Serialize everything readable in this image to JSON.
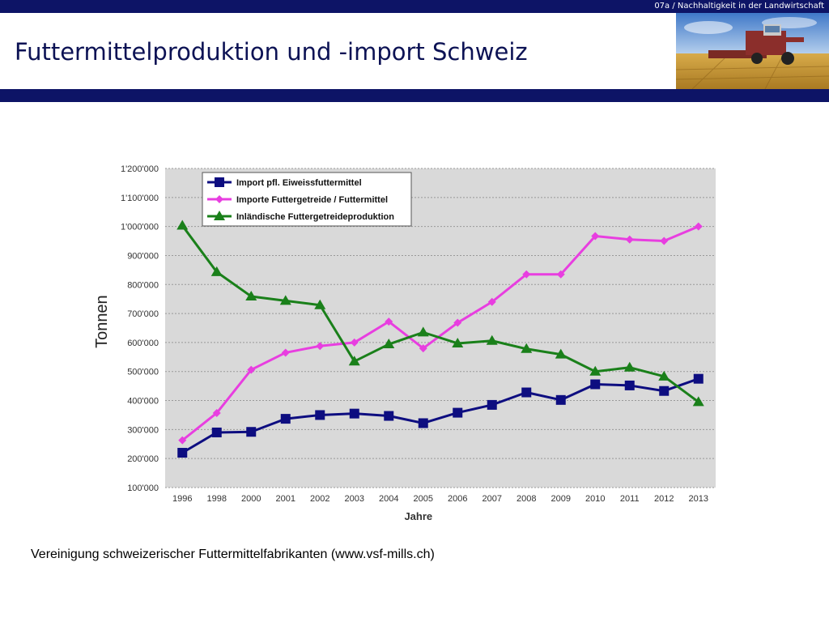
{
  "header": {
    "section_label": "07a / Nachhaltigkeit in der Landwirtschaft",
    "title": "Futtermittelproduktion und -import Schweiz",
    "photo_icon": "combine-harvester-field-photo"
  },
  "colors": {
    "bar": "#0d1466",
    "title": "#0c1254",
    "plot_bg": "#d9d9d9",
    "grid": "#999999"
  },
  "chart_data": {
    "type": "line",
    "title": "",
    "xlabel": "Jahre",
    "ylabel": "Tonnen",
    "categories": [
      "1996",
      "1998",
      "2000",
      "2001",
      "2002",
      "2003",
      "2004",
      "2005",
      "2006",
      "2007",
      "2008",
      "2009",
      "2010",
      "2011",
      "2012",
      "2013"
    ],
    "ylim": [
      100000,
      1200000
    ],
    "yticks": [
      100000,
      200000,
      300000,
      400000,
      500000,
      600000,
      700000,
      800000,
      900000,
      1000000,
      1100000,
      1200000
    ],
    "ytick_labels": [
      "100'000",
      "200'000",
      "300'000",
      "400'000",
      "500'000",
      "600'000",
      "700'000",
      "800'000",
      "900'000",
      "1'000'000",
      "1'100'000",
      "1'200'000"
    ],
    "grid": true,
    "legend_position": "top-left",
    "series": [
      {
        "name": "Import pfl. Eiweissfuttermittel",
        "color": "#0d0d80",
        "marker": "square",
        "values": [
          220000,
          290000,
          292000,
          337000,
          350000,
          355000,
          347000,
          322000,
          358000,
          385000,
          428000,
          402000,
          456000,
          452000,
          433000,
          475000
        ]
      },
      {
        "name": "Importe Futtergetreide / Futtermittel",
        "color": "#e83ee0",
        "marker": "diamond",
        "values": [
          263000,
          357000,
          506000,
          565000,
          588000,
          600000,
          672000,
          580000,
          668000,
          740000,
          835000,
          835000,
          967000,
          955000,
          950000,
          1000000
        ]
      },
      {
        "name": "Inländische Futtergetreideproduktion",
        "color": "#1a801a",
        "marker": "triangle",
        "values": [
          1003000,
          843000,
          759000,
          744000,
          729000,
          535000,
          594000,
          635000,
          597000,
          606000,
          578000,
          559000,
          500000,
          514000,
          483000,
          395000
        ]
      }
    ]
  },
  "footer": {
    "source": "Vereinigung schweizerischer Futtermittelfabrikanten (www.vsf-mills.ch)"
  }
}
